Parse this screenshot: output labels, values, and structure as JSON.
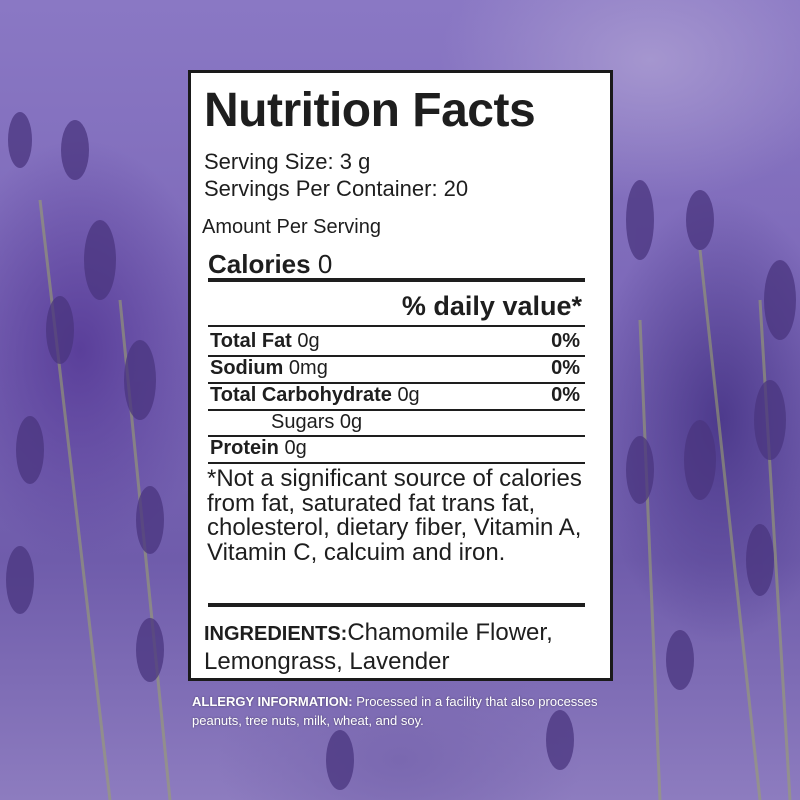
{
  "label": {
    "title": "Nutrition Facts",
    "serving_size": "Serving Size: 3 g",
    "servings_per_container": "Servings Per Container: 20",
    "amount_per_serving": "Amount Per Serving",
    "calories_label": "Calories",
    "calories_value": "0",
    "daily_value_header": "% daily value*",
    "rows": [
      {
        "name": "Total Fat",
        "amount": "0g",
        "pct": "0%"
      },
      {
        "name": "Sodium",
        "amount": "0mg",
        "pct": "0%"
      },
      {
        "name": "Total Carbohydrate",
        "amount": "0g",
        "pct": "0%"
      },
      {
        "name": "Sugars 0g"
      },
      {
        "name": "Protein",
        "amount": "0g"
      }
    ],
    "footnote": "*Not a significant source of calories from fat, saturated fat trans fat, cholesterol, dietary fiber, Vitamin A, Vitamin C, calcuim and iron.",
    "ingredients_label": "INGREDIENTS:",
    "ingredients": "Chamomile Flower, Lemongrass, Lavender"
  },
  "allergy": {
    "label": "ALLERGY INFORMATION:",
    "text": "Processed in a facility that also processes peanuts, tree nuts, milk, wheat, and soy."
  }
}
